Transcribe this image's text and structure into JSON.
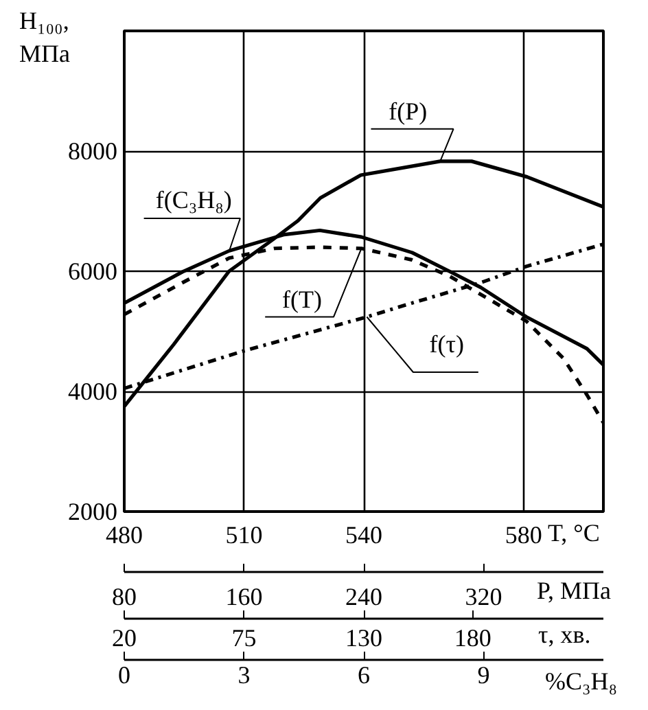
{
  "chart_data": [
    {
      "type": "line",
      "ylabel": "H₁₀₀, МПа",
      "xlabel": "T, °C",
      "xlim": [
        480,
        600
      ],
      "xticks": [
        480,
        510,
        540,
        580
      ],
      "x2label": "P, МПа",
      "x2lim": [
        80,
        400
      ],
      "x2ticks": [
        80,
        160,
        240,
        320
      ],
      "ylim": [
        2000,
        10000
      ],
      "yticks": [
        2000,
        4000,
        6000,
        8000
      ],
      "grid": true,
      "series": [
        {
          "name": "f(P)",
          "color": "#000000",
          "axis": "x2",
          "line_style": "solid",
          "x": [
            80,
            113,
            150,
            180,
            196,
            211,
            238,
            291,
            312,
            349,
            400
          ],
          "values": [
            3750,
            4780,
            6000,
            6540,
            6840,
            7220,
            7600,
            7830,
            7830,
            7570,
            7070
          ]
        },
        {
          "name": "f(T)",
          "color": "#000000",
          "line_style": "dashed",
          "x": [
            480,
            494.6,
            506.3,
            517.7,
            529,
            539.4,
            552,
            561.4,
            580.7,
            590,
            595.9,
            600
          ],
          "values": [
            5280,
            5810,
            6220,
            6380,
            6400,
            6380,
            6190,
            5920,
            5170,
            4550,
            3940,
            3480
          ]
        }
      ]
    },
    {
      "type": "line",
      "tick_labels": "x",
      "xlabel": "τ, хв.",
      "xlim": [
        20,
        240
      ],
      "xticks": [
        20,
        75,
        130,
        180
      ],
      "x2label": "%C₃H₈",
      "x2lim": [
        0,
        12
      ],
      "x2ticks": [
        0,
        3,
        6,
        9
      ],
      "ylim": [
        2000,
        10000
      ],
      "series": [
        {
          "name": "f(C₃H₈)",
          "color": "#000000",
          "axis": "x2",
          "line_style": "solid",
          "x": [
            0,
            1.46,
            2.63,
            4.01,
            4.9,
            5.94,
            7.21,
            8.14,
            8.93,
            10.07,
            11.59,
            12
          ],
          "values": [
            5470,
            5990,
            6340,
            6610,
            6680,
            6570,
            6310,
            6000,
            5730,
            5240,
            4710,
            4440
          ]
        },
        {
          "name": "f(τ)",
          "color": "#000000",
          "line_style": "dashdot",
          "x": [
            20,
            74.5,
            131.4,
            152.1,
            183.7,
            204.6,
            240
          ],
          "values": [
            4050,
            4670,
            5240,
            5470,
            5810,
            6080,
            6450
          ]
        }
      ]
    }
  ]
}
